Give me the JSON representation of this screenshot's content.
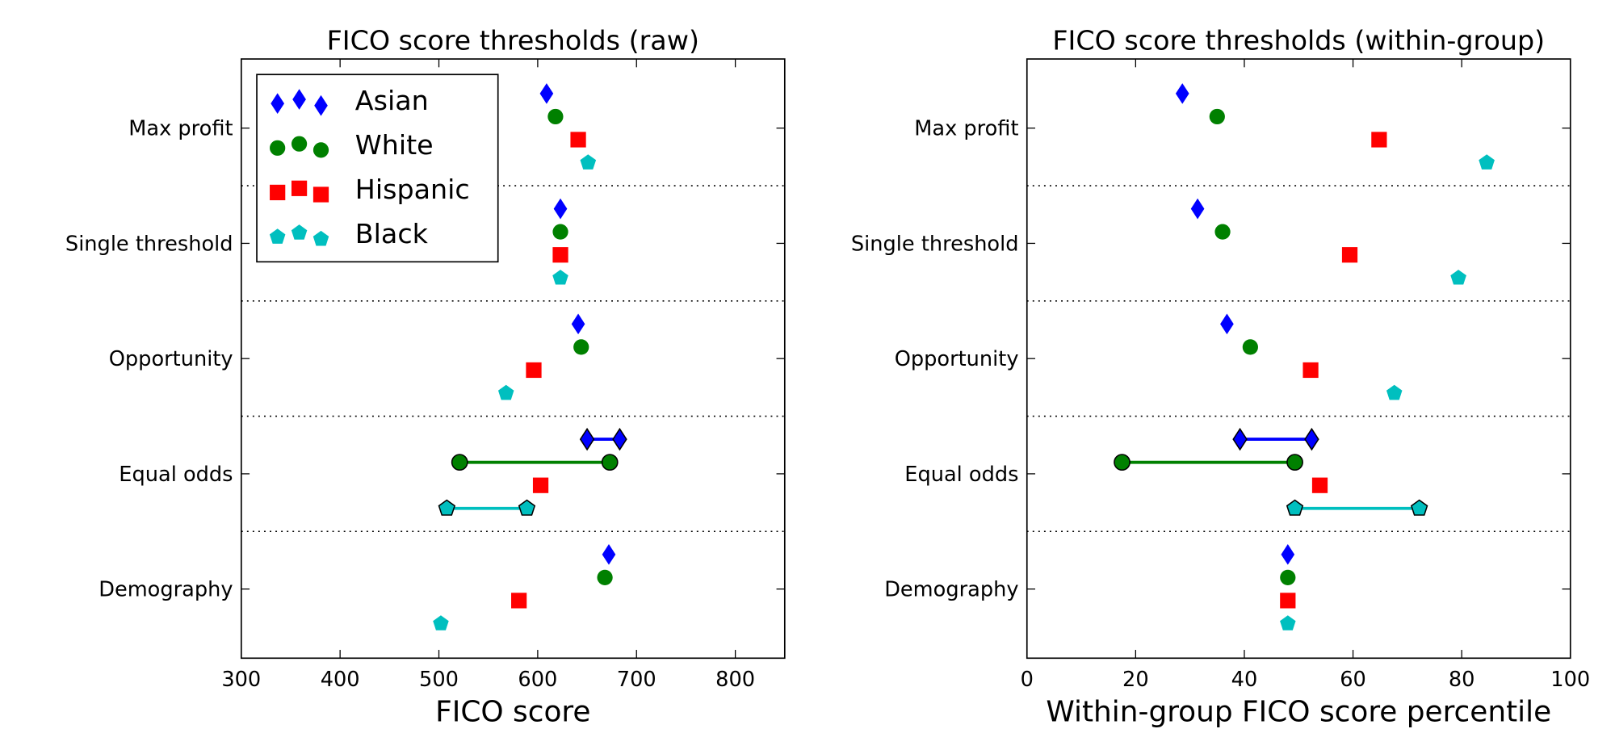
{
  "colors": {
    "Asian": "#0000ff",
    "White": "#008000",
    "Hispanic": "#ff0000",
    "Black": "#00bfbf"
  },
  "markers": {
    "Asian": "diamond",
    "White": "circle",
    "Hispanic": "square",
    "Black": "pentagon"
  },
  "chart_data": [
    {
      "type": "scatter",
      "title": "FICO score thresholds (raw)",
      "xlabel": "FICO score",
      "ylabel": "",
      "xlim": [
        300,
        850
      ],
      "xticks": [
        300,
        400,
        500,
        600,
        700,
        800
      ],
      "categories": [
        "Max profit",
        "Single threshold",
        "Opportunity",
        "Equal odds",
        "Demography"
      ],
      "legend": {
        "placement": "top-left",
        "entries": [
          "Asian",
          "White",
          "Hispanic",
          "Black"
        ]
      },
      "grid": "dotted separators between categories",
      "series": [
        {
          "name": "Asian",
          "values": [
            609,
            623,
            641,
            [
              650,
              683
            ],
            672
          ]
        },
        {
          "name": "White",
          "values": [
            618,
            623,
            644,
            [
              521,
              673
            ],
            668
          ]
        },
        {
          "name": "Hispanic",
          "values": [
            641,
            623,
            596,
            603,
            581
          ]
        },
        {
          "name": "Black",
          "values": [
            651,
            623,
            568,
            [
              508,
              589
            ],
            502
          ]
        }
      ]
    },
    {
      "type": "scatter",
      "title": "FICO score thresholds (within-group)",
      "xlabel": "Within-group FICO score percentile",
      "ylabel": "",
      "xlim": [
        0,
        100
      ],
      "xticks": [
        0,
        20,
        40,
        60,
        80,
        100
      ],
      "categories": [
        "Max profit",
        "Single threshold",
        "Opportunity",
        "Equal odds",
        "Demography"
      ],
      "grid": "dotted separators between categories",
      "series": [
        {
          "name": "Asian",
          "values": [
            28.6,
            31.4,
            36.8,
            [
              39.2,
              52.4
            ],
            48
          ]
        },
        {
          "name": "White",
          "values": [
            35,
            36,
            41.1,
            [
              17.5,
              49.3
            ],
            48
          ]
        },
        {
          "name": "Hispanic",
          "values": [
            64.8,
            59.4,
            52.2,
            53.9,
            48
          ]
        },
        {
          "name": "Black",
          "values": [
            84.6,
            79.4,
            67.6,
            [
              49.3,
              72.2
            ],
            48
          ]
        }
      ]
    }
  ]
}
